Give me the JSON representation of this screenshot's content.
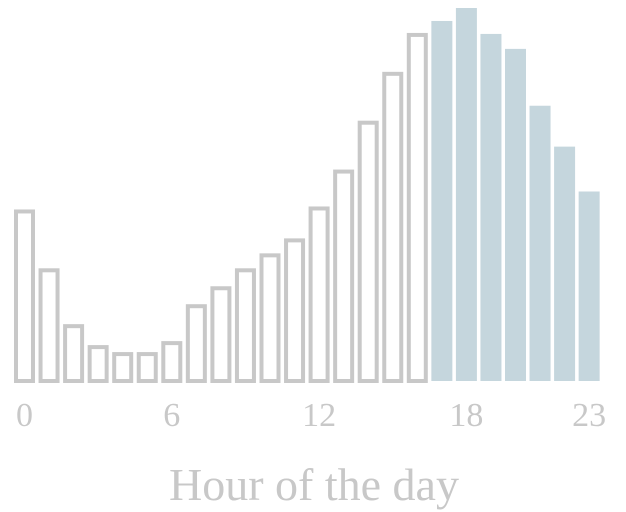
{
  "chart_data": {
    "type": "bar",
    "xlabel": "Hour of the day",
    "ylabel": "",
    "x": [
      0,
      1,
      2,
      3,
      4,
      5,
      6,
      7,
      8,
      9,
      10,
      11,
      12,
      13,
      14,
      15,
      16,
      17,
      18,
      19,
      20,
      21,
      22,
      23
    ],
    "values": [
      172,
      113,
      57,
      36,
      29,
      29,
      40,
      77,
      95,
      113,
      128,
      143,
      175,
      212,
      261,
      310,
      349,
      361,
      374,
      348,
      333,
      276,
      235,
      190
    ],
    "highlight_from": 17,
    "colors": {
      "outline": "#c8c8c8",
      "highlight": "#c5d6dd"
    },
    "xticks": [
      {
        "value": 0,
        "label": "0"
      },
      {
        "value": 6,
        "label": "6"
      },
      {
        "value": 12,
        "label": "12"
      },
      {
        "value": 18,
        "label": "18"
      },
      {
        "value": 23,
        "label": "23"
      }
    ],
    "ylim": [
      0,
      374
    ],
    "grid": false,
    "legend": "none"
  }
}
